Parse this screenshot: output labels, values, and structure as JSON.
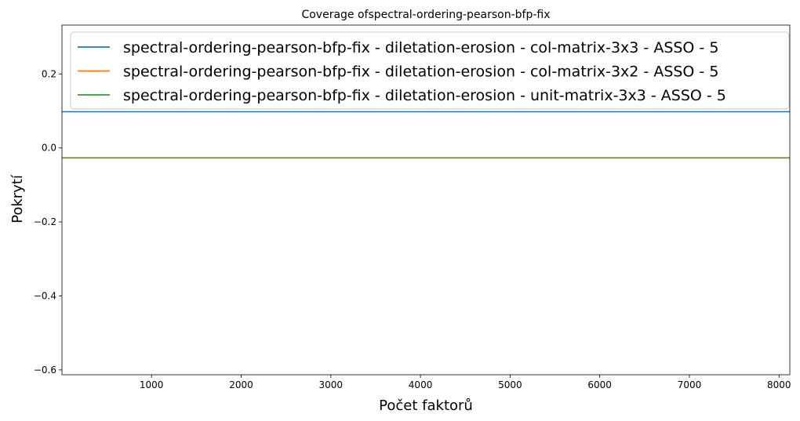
{
  "chart_data": {
    "type": "line",
    "title": "Coverage ofspectral-ordering-pearson-bfp-fix",
    "xlabel": "Počet faktorů",
    "ylabel": "Pokrytí",
    "xlim": [
      1,
      8120
    ],
    "ylim": [
      -0.613,
      0.332
    ],
    "xticks": [
      1000,
      2000,
      3000,
      4000,
      5000,
      6000,
      7000,
      8000
    ],
    "yticks": [
      -0.6,
      -0.4,
      -0.2,
      0.0,
      0.2
    ],
    "ytick_labels": [
      "−0.6",
      "−0.4",
      "−0.2",
      "0.0",
      "0.2"
    ],
    "grid": false,
    "legend_position": "top",
    "series": [
      {
        "name": "spectral-ordering-pearson-bfp-fix - diletation-erosion - col-matrix-3x3 - ASSO - 5",
        "color": "#1f77b4",
        "x": [
          1,
          8120
        ],
        "y": [
          0.098,
          0.098
        ]
      },
      {
        "name": "spectral-ordering-pearson-bfp-fix - diletation-erosion - col-matrix-3x2 - ASSO - 5",
        "color": "#ff7f0e",
        "x": [
          1,
          8120
        ],
        "y": [
          -0.027,
          -0.027
        ]
      },
      {
        "name": "spectral-ordering-pearson-bfp-fix - diletation-erosion - unit-matrix-3x3 - ASSO - 5",
        "color": "#2ca02c",
        "x": [
          1,
          8120
        ],
        "y": [
          -0.027,
          -0.027
        ]
      }
    ]
  }
}
